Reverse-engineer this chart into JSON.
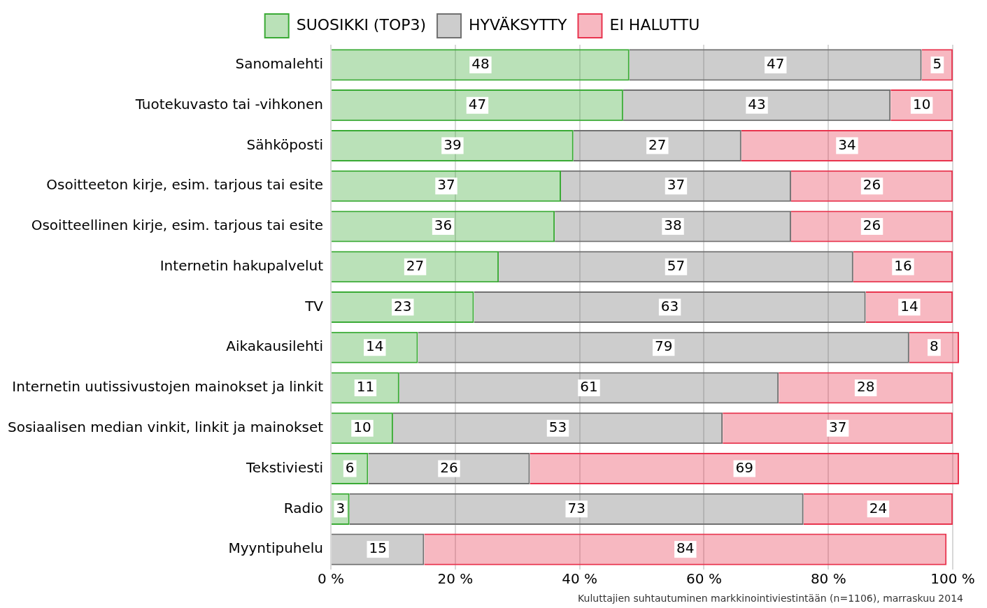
{
  "chart_data": {
    "type": "bar",
    "orientation": "horizontal",
    "stacked": true,
    "categories": [
      "Sanomalehti",
      "Tuotekuvasto tai -vihkonen",
      "Sähköposti",
      "Osoitteeton kirje, esim. tarjous tai esite",
      "Osoitteellinen kirje, esim. tarjous tai esite",
      "Internetin hakupalvelut",
      "TV",
      "Aikakausilehti",
      "Internetin uutissivustojen mainokset ja linkit",
      "Sosiaalisen median vinkit, linkit ja mainokset",
      "Tekstiviesti",
      "Radio",
      "Myyntipuhelu"
    ],
    "series": [
      {
        "name": "SUOSIKKI (TOP3)",
        "color": "#3aaa35",
        "values": [
          48,
          47,
          39,
          37,
          36,
          27,
          23,
          14,
          11,
          10,
          6,
          3,
          null
        ]
      },
      {
        "name": "HYVÄKSYTTY",
        "color": "#707070",
        "values": [
          47,
          43,
          27,
          37,
          38,
          57,
          63,
          79,
          61,
          53,
          26,
          73,
          15
        ]
      },
      {
        "name": "EI HALUTTU",
        "color": "#e8344e",
        "values": [
          5,
          10,
          34,
          26,
          26,
          16,
          14,
          8,
          28,
          37,
          69,
          24,
          84
        ]
      }
    ],
    "xlim": [
      0,
      101
    ],
    "xticks": [
      {
        "value": 0,
        "label": "0 %"
      },
      {
        "value": 20,
        "label": "20 %"
      },
      {
        "value": 40,
        "label": "40 %"
      },
      {
        "value": 60,
        "label": "60 %"
      },
      {
        "value": 80,
        "label": "80 %"
      },
      {
        "value": 100,
        "label": "100 %"
      }
    ],
    "grid": "x",
    "legend": "top",
    "data_labels": true,
    "annotations": [
      "Kuluttajien suhtautuminen markkinointiviestintään (n=1106), marraskuu 2014"
    ]
  }
}
